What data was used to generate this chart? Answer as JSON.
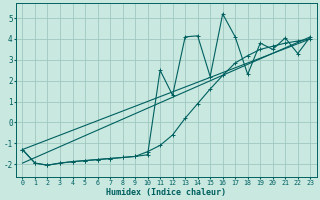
{
  "xlabel": "Humidex (Indice chaleur)",
  "background_color": "#c8e8e0",
  "grid_color": "#a0c8c0",
  "line_color": "#006060",
  "xlim": [
    -0.5,
    23.5
  ],
  "ylim": [
    -2.6,
    5.7
  ],
  "yticks": [
    -2,
    -1,
    0,
    1,
    2,
    3,
    4,
    5
  ],
  "xticks": [
    0,
    1,
    2,
    3,
    4,
    5,
    6,
    7,
    8,
    9,
    10,
    11,
    12,
    13,
    14,
    15,
    16,
    17,
    18,
    19,
    20,
    21,
    22,
    23
  ],
  "curve_jagged": {
    "x": [
      0,
      1,
      2,
      3,
      4,
      5,
      6,
      7,
      8,
      9,
      10,
      11,
      12,
      13,
      14,
      15,
      16,
      17,
      18,
      19,
      20,
      21,
      22,
      23
    ],
    "y": [
      -1.3,
      -1.95,
      -2.05,
      -1.95,
      -1.88,
      -1.83,
      -1.78,
      -1.73,
      -1.68,
      -1.63,
      -1.55,
      2.5,
      1.3,
      4.1,
      4.15,
      2.2,
      5.2,
      4.1,
      2.3,
      3.8,
      3.5,
      4.05,
      3.3,
      4.1
    ]
  },
  "curve_smooth1": {
    "x": [
      0,
      1,
      2,
      3,
      4,
      5,
      6,
      7,
      8,
      9,
      10,
      11,
      12,
      13,
      14,
      15,
      16,
      17,
      18,
      19,
      20,
      21,
      22,
      23
    ],
    "y": [
      -1.3,
      -1.95,
      -2.05,
      -1.95,
      -1.88,
      -1.83,
      -1.78,
      -1.73,
      -1.68,
      -1.63,
      -1.4,
      -1.1,
      -0.6,
      0.2,
      0.9,
      1.6,
      2.25,
      2.85,
      3.2,
      3.5,
      3.65,
      3.8,
      3.9,
      4.0
    ]
  },
  "curve_straight1": {
    "x": [
      0,
      23
    ],
    "y": [
      -1.3,
      4.0
    ]
  },
  "curve_straight2": {
    "x": [
      0,
      23
    ],
    "y": [
      -1.95,
      4.1
    ]
  }
}
